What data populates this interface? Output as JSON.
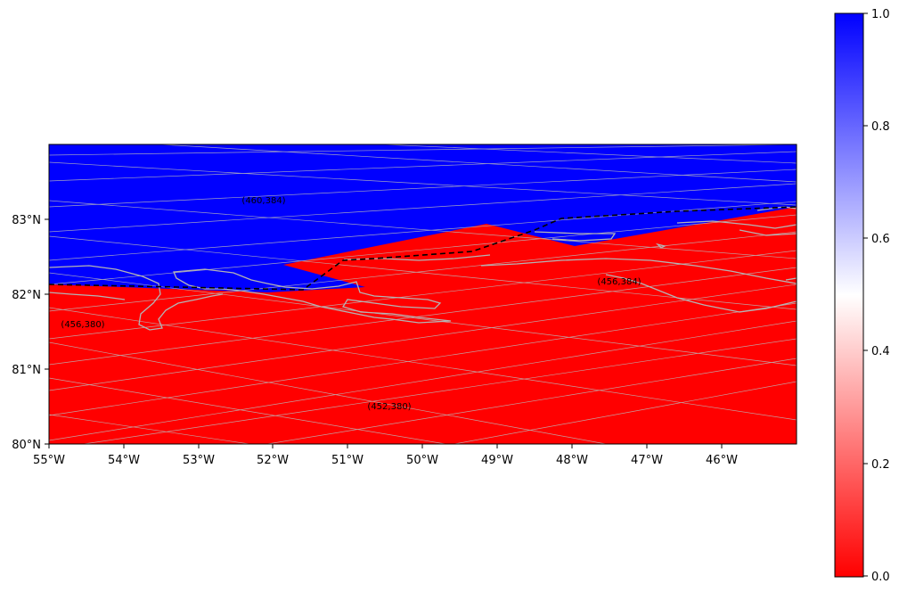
{
  "map": {
    "lat_ticks": [
      "80°N",
      "81°N",
      "82°N",
      "83°N"
    ],
    "lon_ticks": [
      "55°W",
      "54°W",
      "53°W",
      "52°W",
      "51°W",
      "50°W",
      "49°W",
      "48°W",
      "47°W",
      "46°W"
    ],
    "lon_range": [
      -55,
      -45
    ],
    "lat_range": [
      80,
      84
    ],
    "grid_cells": [
      {
        "label": "(460,384)",
        "value": 1.0
      },
      {
        "label": "(456,384)",
        "value": 0.0
      },
      {
        "label": "(456,380)",
        "value": 0.0
      },
      {
        "label": "(452,380)",
        "value": 0.0
      }
    ],
    "colors": {
      "high": "#0000ff",
      "low": "#ff0000",
      "mid": "#ffffff",
      "coastline": "#b4b4b4",
      "graticule": "#bbbbbb",
      "boundary": "#000000"
    }
  },
  "colorbar": {
    "ticks": [
      "0.0",
      "0.2",
      "0.4",
      "0.6",
      "0.8",
      "1.0"
    ],
    "range": [
      0.0,
      1.0
    ]
  }
}
